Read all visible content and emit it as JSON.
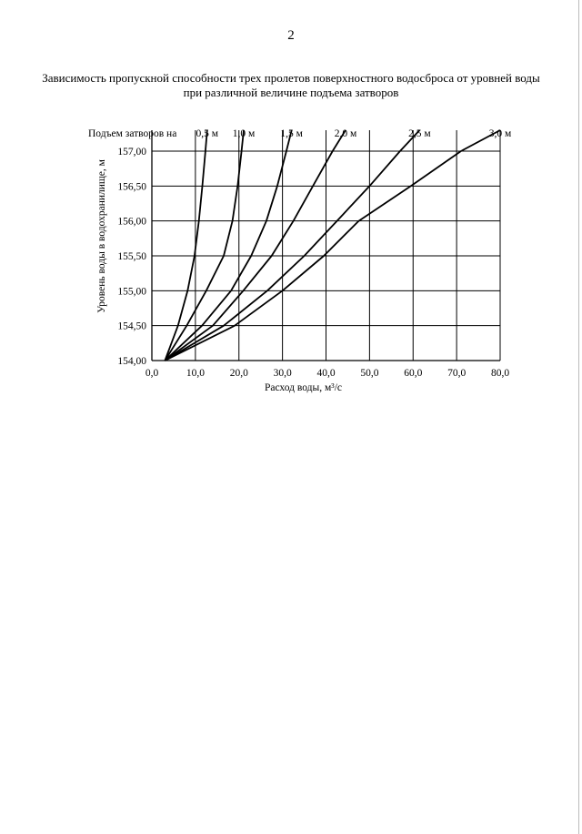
{
  "page": {
    "number": "2"
  },
  "title": {
    "line1": "Зависимость пропускной способности трех пролетов поверхностного водосброса от уровней воды",
    "line2": "при различной величине подъема затворов"
  },
  "chart_data": {
    "type": "line",
    "xlabel": "Расход воды, м³/с",
    "ylabel": "Уровень воды в водохранилище, м",
    "legend_title": "Подъем затворов на",
    "legend_placement": "top",
    "grid": true,
    "xlim": [
      0,
      80
    ],
    "ylim": [
      154,
      157.3
    ],
    "x_ticks": [
      "0,0",
      "10,0",
      "20,0",
      "30,0",
      "40,0",
      "50,0",
      "60,0",
      "70,0",
      "80,0"
    ],
    "y_ticks": [
      "154,00",
      "154,50",
      "155,00",
      "155,50",
      "156,00",
      "156,50",
      "157,00"
    ],
    "series": [
      {
        "name": "0,5 м",
        "points": [
          [
            3,
            154.0
          ],
          [
            6,
            154.5
          ],
          [
            8.2,
            155.0
          ],
          [
            9.8,
            155.5
          ],
          [
            10.8,
            156.0
          ],
          [
            11.6,
            156.5
          ],
          [
            12.3,
            157.0
          ],
          [
            12.7,
            157.3
          ]
        ]
      },
      {
        "name": "1,0 м",
        "points": [
          [
            3,
            154.0
          ],
          [
            8,
            154.5
          ],
          [
            12.5,
            155.0
          ],
          [
            16.5,
            155.5
          ],
          [
            18.5,
            156.0
          ],
          [
            19.7,
            156.5
          ],
          [
            20.6,
            157.0
          ],
          [
            21.1,
            157.3
          ]
        ]
      },
      {
        "name": "1,5 м",
        "points": [
          [
            3,
            154.0
          ],
          [
            11.5,
            154.5
          ],
          [
            18.2,
            155.0
          ],
          [
            22.8,
            155.5
          ],
          [
            26.3,
            156.0
          ],
          [
            28.8,
            156.5
          ],
          [
            30.9,
            157.0
          ],
          [
            32.1,
            157.3
          ]
        ]
      },
      {
        "name": "2,0 м",
        "points": [
          [
            3,
            154.0
          ],
          [
            14,
            154.5
          ],
          [
            21,
            155.0
          ],
          [
            27.5,
            155.5
          ],
          [
            32.5,
            156.0
          ],
          [
            37,
            156.5
          ],
          [
            41.5,
            157.0
          ],
          [
            44.5,
            157.3
          ]
        ]
      },
      {
        "name": "2,5 м",
        "points": [
          [
            3,
            154.0
          ],
          [
            16.5,
            154.5
          ],
          [
            26.5,
            155.0
          ],
          [
            35,
            155.5
          ],
          [
            42.5,
            156.0
          ],
          [
            50,
            156.5
          ],
          [
            57,
            157.0
          ],
          [
            61.5,
            157.3
          ]
        ]
      },
      {
        "name": "3,0 м",
        "points": [
          [
            3,
            154.0
          ],
          [
            19,
            154.5
          ],
          [
            30,
            155.0
          ],
          [
            39.5,
            155.5
          ],
          [
            47.5,
            156.0
          ],
          [
            59.5,
            156.5
          ],
          [
            71,
            157.0
          ],
          [
            80,
            157.3
          ]
        ]
      }
    ]
  }
}
